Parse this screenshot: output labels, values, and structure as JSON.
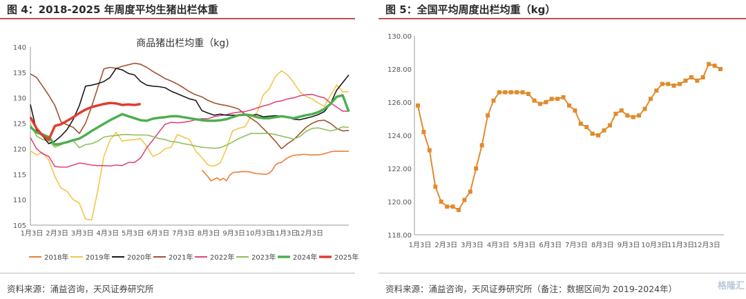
{
  "left": {
    "figure_title": "图 4：2018-2025 年周度平均生猪出栏体重",
    "source": "资料来源：涌益咨询，天风证券研究所"
  },
  "right": {
    "figure_title": "图 5：全国平均周度出栏均重（kg）",
    "source": "资料来源：涌益咨询，天风证券研究所（备注：数据区间为 2019-2024年）",
    "watermark": "格隆汇"
  },
  "chart_data": [
    {
      "type": "line",
      "title": "商品猪出栏均重（kg)",
      "xlabel": "",
      "ylabel": "",
      "ylim": [
        105,
        140
      ],
      "yticks": [
        105,
        110,
        115,
        120,
        125,
        130,
        135,
        140
      ],
      "x_ticks": [
        "1月3日",
        "2月3日",
        "3月3日",
        "4月3日",
        "5月3日",
        "6月3日",
        "7月3日",
        "8月3日",
        "9月3日",
        "10月3日",
        "11月3日",
        "12月3日"
      ],
      "legend_position": "bottom",
      "colors": {
        "2018年": "#ed7d31",
        "2019年": "#f2c54a",
        "2020年": "#1a1a1a",
        "2021年": "#a0522d",
        "2022年": "#e0457b",
        "2023年": "#8fbf5a",
        "2024年": "#4caf50",
        "2025年": "#e03c31"
      },
      "series": [
        {
          "name": "2018年",
          "x": [
            28,
            28.5,
            29,
            29.5,
            30,
            30.5,
            31,
            31.5,
            32,
            32.5,
            33,
            33.5,
            34,
            34.5,
            35,
            35.5,
            36,
            36.5,
            37,
            37.5,
            38,
            38.5,
            39,
            39.5,
            40,
            40.5,
            41,
            41.5,
            42,
            42.5,
            43,
            43.5,
            44,
            44.5,
            45,
            45.5,
            46,
            46.5,
            47,
            47.5,
            48,
            48.5,
            49,
            49.5,
            50,
            50.5,
            51,
            51.5,
            52
          ],
          "values": [
            115.8,
            115.2,
            114.5,
            113.7,
            114.0,
            114.3,
            113.8,
            114.2,
            113.7,
            114.7,
            115.3,
            115.4,
            115.4,
            115.5,
            115.5,
            115.5,
            115.4,
            115.2,
            115.1,
            115.1,
            115.0,
            115.0,
            115.2,
            115.8,
            116.8,
            117.2,
            117.3,
            117.8,
            118.2,
            118.5,
            118.7,
            118.8,
            118.8,
            118.9,
            118.9,
            118.8,
            118.8,
            118.8,
            118.8,
            118.9,
            119.0,
            119.2,
            119.4,
            119.5,
            119.5,
            119.5,
            119.5,
            119.5,
            119.5
          ]
        },
        {
          "name": "2019年",
          "x": [
            0,
            1,
            2,
            3,
            4,
            5,
            6,
            7,
            8,
            9,
            10,
            11,
            12,
            13,
            14,
            15,
            16,
            17,
            18,
            19,
            20,
            21,
            22,
            23,
            24,
            25,
            26,
            27,
            28,
            29,
            30,
            31,
            32,
            33,
            34,
            35,
            36,
            37,
            38,
            39,
            40,
            41,
            42,
            43,
            44,
            45,
            46,
            47,
            48,
            49,
            50,
            51,
            52
          ],
          "values": [
            119.6,
            118.8,
            119.3,
            117.8,
            114.5,
            112.3,
            111.6,
            110.0,
            109.3,
            106.2,
            106.0,
            111.8,
            118.5,
            121.7,
            123.2,
            121.5,
            121.7,
            121.8,
            122.0,
            120.5,
            118.5,
            119.0,
            120.0,
            120.3,
            122.8,
            122.3,
            121.8,
            119.5,
            118.3,
            116.8,
            116.6,
            117.2,
            120.0,
            123.5,
            124.0,
            124.3,
            126.3,
            127.0,
            130.5,
            131.8,
            134.2,
            135.3,
            134.5,
            133.0,
            131.2,
            130.3,
            129.8,
            129.0,
            128.3,
            130.5,
            132.5,
            131.2,
            131.2
          ]
        },
        {
          "name": "2020年",
          "x": [
            0,
            1,
            2,
            3,
            4,
            5,
            6,
            7,
            8,
            9,
            10,
            11,
            12,
            13,
            14,
            15,
            16,
            17,
            18,
            19,
            20,
            21,
            22,
            23,
            24,
            25,
            26,
            27,
            28,
            29,
            30,
            31,
            32,
            33,
            34,
            35,
            36,
            37,
            38,
            39,
            40,
            41,
            42,
            43,
            44,
            45,
            46,
            47,
            48,
            49,
            50,
            51,
            52
          ],
          "values": [
            128.7,
            123.5,
            122.5,
            121.0,
            121.5,
            122.5,
            123.8,
            125.8,
            128.5,
            132.3,
            132.5,
            132.8,
            133.2,
            134.0,
            135.8,
            135.5,
            134.8,
            134.5,
            133.2,
            132.5,
            132.3,
            132.2,
            132.0,
            131.3,
            130.8,
            130.3,
            129.8,
            129.5,
            127.5,
            127.0,
            126.6,
            126.8,
            126.6,
            126.6,
            126.6,
            126.6,
            126.6,
            126.7,
            126.3,
            126.4,
            126.5,
            126.4,
            126.3,
            125.8,
            125.7,
            126.0,
            126.3,
            126.7,
            127.3,
            128.8,
            131.5,
            133.0,
            134.5
          ]
        },
        {
          "name": "2021年",
          "x": [
            0,
            1,
            2,
            3,
            4,
            5,
            6,
            7,
            8,
            9,
            10,
            11,
            12,
            13,
            14,
            15,
            16,
            17,
            18,
            19,
            20,
            21,
            22,
            23,
            24,
            25,
            26,
            27,
            28,
            29,
            30,
            31,
            32,
            33,
            34,
            35,
            36,
            37,
            38,
            39,
            40,
            41,
            42,
            43,
            44,
            45,
            46,
            47,
            48,
            49,
            50,
            51,
            52
          ],
          "values": [
            134.7,
            134.0,
            132.3,
            130.5,
            128.5,
            125.3,
            124.7,
            124.2,
            123.0,
            125.0,
            128.3,
            132.0,
            135.7,
            136.0,
            135.8,
            136.2,
            136.5,
            136.8,
            136.6,
            136.0,
            135.2,
            134.5,
            133.8,
            133.3,
            132.7,
            132.0,
            131.2,
            130.6,
            130.2,
            129.5,
            129.0,
            128.7,
            128.5,
            128.2,
            127.8,
            126.8,
            126.0,
            125.2,
            124.0,
            122.8,
            121.5,
            120.0,
            121.0,
            121.8,
            123.0,
            124.2,
            125.0,
            125.5,
            125.6,
            125.0,
            124.0,
            123.5,
            123.6
          ]
        },
        {
          "name": "2022年",
          "x": [
            0,
            1,
            2,
            3,
            4,
            5,
            6,
            7,
            8,
            9,
            10,
            11,
            12,
            13,
            14,
            15,
            16,
            17,
            18,
            19,
            20,
            21,
            22,
            23,
            24,
            25,
            26,
            27,
            28,
            29,
            30,
            31,
            32,
            33,
            34,
            35,
            36,
            37,
            38,
            39,
            40,
            41,
            42,
            43,
            44,
            45,
            46,
            47,
            48,
            49,
            50,
            51,
            52
          ],
          "values": [
            122.2,
            120.0,
            119.0,
            118.5,
            116.5,
            116.4,
            116.4,
            116.8,
            117.2,
            117.0,
            116.8,
            116.7,
            116.7,
            116.6,
            116.8,
            116.7,
            117.3,
            117.3,
            118.2,
            120.2,
            121.7,
            123.3,
            124.8,
            125.2,
            125.1,
            125.2,
            125.4,
            125.7,
            125.9,
            125.9,
            126.3,
            126.5,
            126.7,
            127.0,
            127.2,
            127.3,
            127.6,
            128.0,
            128.4,
            128.7,
            129.2,
            129.4,
            129.8,
            130.0,
            130.4,
            130.6,
            130.7,
            130.3,
            130.0,
            129.0,
            128.2,
            127.4,
            127.4
          ]
        },
        {
          "name": "2023年",
          "x": [
            0,
            1,
            2,
            3,
            4,
            5,
            6,
            7,
            8,
            9,
            10,
            11,
            12,
            13,
            14,
            15,
            16,
            17,
            18,
            19,
            20,
            21,
            22,
            23,
            24,
            25,
            26,
            27,
            28,
            29,
            30,
            31,
            32,
            33,
            34,
            35,
            36,
            37,
            38,
            39,
            40,
            41,
            42,
            43,
            44,
            45,
            46,
            47,
            48,
            49,
            50,
            51,
            52
          ],
          "values": [
            124.8,
            122.5,
            121.8,
            121.5,
            120.3,
            120.8,
            121.3,
            121.6,
            120.2,
            120.8,
            121.0,
            121.5,
            122.3,
            122.5,
            122.6,
            122.8,
            122.8,
            122.7,
            122.7,
            122.7,
            122.4,
            122.0,
            121.8,
            121.4,
            121.3,
            121.0,
            120.8,
            120.5,
            120.3,
            120.2,
            120.1,
            120.2,
            120.7,
            121.3,
            122.0,
            122.5,
            123.0,
            123.0,
            123.0,
            123.0,
            122.8,
            122.5,
            122.2,
            121.9,
            122.4,
            123.4,
            124.0,
            124.1,
            123.8,
            123.5,
            123.8,
            124.3,
            124.2
          ]
        },
        {
          "name": "2024年",
          "x": [
            0,
            1,
            2,
            3,
            4,
            5,
            6,
            7,
            8,
            9,
            10,
            11,
            12,
            13,
            14,
            15,
            16,
            17,
            18,
            19,
            20,
            21,
            22,
            23,
            24,
            25,
            26,
            27,
            28,
            29,
            30,
            31,
            32,
            33,
            34,
            35,
            36,
            37,
            38,
            39,
            40,
            41,
            42,
            43,
            44,
            45,
            46,
            47,
            48,
            49,
            50,
            51,
            52
          ],
          "values": [
            124.3,
            123.2,
            122.8,
            122.3,
            120.8,
            121.0,
            121.3,
            121.7,
            122.0,
            122.7,
            123.5,
            124.2,
            124.9,
            125.6,
            126.2,
            126.8,
            126.4,
            126.0,
            125.6,
            125.5,
            125.9,
            126.1,
            126.2,
            126.4,
            126.4,
            126.2,
            126.0,
            125.8,
            125.6,
            125.5,
            125.5,
            125.6,
            125.8,
            126.2,
            126.6,
            126.7,
            126.6,
            126.2,
            126.0,
            126.0,
            126.2,
            126.4,
            126.2,
            126.0,
            126.3,
            126.6,
            126.8,
            127.2,
            127.8,
            128.8,
            130.2,
            130.5,
            127.3
          ]
        },
        {
          "name": "2025年",
          "x": [
            0,
            1,
            2,
            3,
            4,
            5,
            6,
            7,
            8,
            9,
            10,
            11,
            12,
            13,
            14,
            15,
            16,
            17,
            18
          ],
          "values": [
            126.2,
            124.0,
            122.6,
            121.8,
            124.5,
            124.8,
            125.5,
            126.2,
            127.0,
            127.7,
            128.2,
            128.5,
            128.8,
            129.0,
            128.9,
            128.6,
            128.7,
            128.6,
            128.8
          ]
        }
      ]
    },
    {
      "type": "line",
      "title": "",
      "xlabel": "",
      "ylabel": "",
      "ylim": [
        118,
        130
      ],
      "yticks": [
        118.0,
        120.0,
        122.0,
        124.0,
        126.0,
        128.0,
        130.0
      ],
      "x_ticks": [
        "1月3日",
        "2月3日",
        "3月3日",
        "4月3日",
        "5月3日",
        "6月3日",
        "7月3日",
        "8月3日",
        "9月3日",
        "10月3日",
        "11月3日",
        "12月3日"
      ],
      "colors": {
        "line": "#e08b2c"
      },
      "series": [
        {
          "x": [
            0,
            1,
            2,
            3,
            4,
            5,
            6,
            7,
            8,
            9,
            10,
            11,
            12,
            13,
            14,
            15,
            16,
            17,
            18,
            19,
            20,
            21,
            22,
            23,
            24,
            25,
            26,
            27,
            28,
            29,
            30,
            31,
            32,
            33,
            34,
            35,
            36,
            37,
            38,
            39,
            40,
            41,
            42,
            43,
            44,
            45,
            46,
            47,
            48,
            49,
            50,
            51,
            52
          ],
          "values": [
            125.8,
            124.2,
            123.1,
            120.9,
            120.0,
            119.7,
            119.7,
            119.5,
            120.1,
            120.6,
            122.0,
            123.4,
            125.2,
            126.1,
            126.6,
            126.6,
            126.6,
            126.6,
            126.6,
            126.5,
            126.1,
            125.9,
            126.0,
            126.2,
            126.2,
            126.3,
            125.8,
            125.5,
            124.7,
            124.5,
            124.1,
            124.0,
            124.3,
            124.6,
            125.3,
            125.5,
            125.2,
            125.1,
            125.2,
            125.6,
            126.2,
            126.7,
            127.1,
            127.1,
            127.0,
            127.1,
            127.3,
            127.5,
            127.3,
            127.5,
            128.3,
            128.2,
            128.0
          ]
        }
      ]
    }
  ]
}
